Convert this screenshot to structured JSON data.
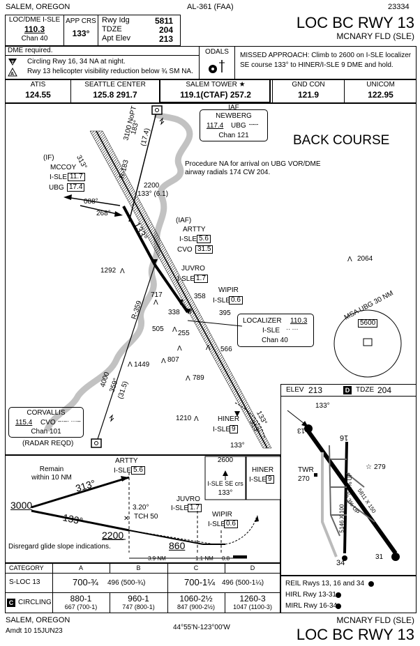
{
  "header": {
    "city_state": "SALEM, OREGON",
    "agency": "AL-361 (FAA)",
    "proc_number": "23334",
    "title": "LOC BC RWY 13",
    "airport": "MCNARY FLD (SLE)"
  },
  "briefing": {
    "loc_label": "LOC/DME  I-SLE",
    "loc_freq": "110.3",
    "chan": "Chan 40",
    "app_crs_label": "APP CRS",
    "app_crs": "133°",
    "rwy_ldg_label": "Rwy Idg",
    "rwy_ldg": "5811",
    "tdze_label": "TDZE",
    "tdze": "204",
    "apt_elev_label": "Apt Elev",
    "apt_elev": "213",
    "dme_required": "DME required.",
    "note1": "Circling Rwy 16, 34 NA at night.",
    "note2": "Rwy 13 helicopter visibility reduction below ¾ SM NA.",
    "odals": "ODALS",
    "missed": "MISSED APPROACH:  Climb to 2600 on I-SLE localizer SE course 133° to HINER/I-SLE 9 DME and hold."
  },
  "comms": [
    {
      "label": "ATIS",
      "value": "124.55"
    },
    {
      "label": "SEATTLE CENTER",
      "value": "125.8  291.7"
    },
    {
      "label": "SALEM TOWER ★",
      "value": "119.1(CTAF)  257.2"
    },
    {
      "label": "GND CON",
      "value": "121.9"
    },
    {
      "label": "UNICOM",
      "value": "122.95"
    }
  ],
  "plan": {
    "back_course": "BACK COURSE",
    "proc_na": "Procedure NA for arrival on UBG VOR/DME airway radials 174 CW 204.",
    "iaf_newberg": {
      "tag": "IAF",
      "name": "NEWBERG",
      "freq": "117.4",
      "id": "UBG",
      "chan": "Chan 121"
    },
    "mccoy": {
      "tag": "(IF)",
      "name": "MCCOY",
      "isle_label": "I-SLE",
      "isle_dme": "11.7",
      "ubg_label": "UBG",
      "ubg_dme": "17.4"
    },
    "artty": {
      "tag": "(IAF)",
      "name": "ARTTY",
      "isle_label": "I-SLE",
      "isle_dme": "5.6",
      "cvo_label": "CVO",
      "cvo_dme": "31.5"
    },
    "juvro": {
      "name": "JUVRO",
      "isle_label": "I-SLE",
      "isle_dme": "1.7"
    },
    "wipir": {
      "name": "WIPIR",
      "isle_label": "I-SLE",
      "isle_dme": "0.6"
    },
    "localizer": {
      "name": "LOCALIZER",
      "freq": "110.3",
      "id": "I-SLE",
      "chan": "Chan 40"
    },
    "corvallis": {
      "name": "CORVALLIS",
      "freq": "115.4",
      "id": "CVO",
      "chan": "Chan 101",
      "note": "(RADAR REQD)"
    },
    "hiner": {
      "name": "HINER",
      "isle_label": "I-SLE",
      "isle_dme": "9"
    },
    "msa": {
      "label": "MSA UBG 30 NM",
      "alt": "5600"
    },
    "labels": {
      "r183": "R-183",
      "feeder": "3100 NoPT",
      "feeder_crs": "183°",
      "feeder_dist": "(17.4)",
      "course_313": "313°",
      "alt_2200": "2200",
      "seg_2200": "133° (6.1)",
      "crs_088": "088°",
      "crs_268": "268°",
      "crs_133": "133°",
      "r359": "R-359",
      "r359_alt": "4000",
      "r359_crs": "359°",
      "r359_dist": "(31.5)",
      "miss_313": "313°",
      "miss_133": "133°"
    },
    "spots": [
      {
        "v": "1292"
      },
      {
        "v": "2064"
      },
      {
        "v": "717"
      },
      {
        "v": "358"
      },
      {
        "v": "338"
      },
      {
        "v": "395"
      },
      {
        "v": "505"
      },
      {
        "v": "255"
      },
      {
        "v": "566"
      },
      {
        "v": "1449"
      },
      {
        "v": "807"
      },
      {
        "v": "789"
      },
      {
        "v": "1210"
      }
    ]
  },
  "airport_sketch": {
    "elev_label": "ELEV",
    "elev": "213",
    "tdze_label": "TDZE",
    "tdze": "204",
    "box_letter": "D",
    "crs": "133°",
    "rwy_13": "13",
    "rwy_16": "16",
    "rwy_34": "34",
    "rwy_31": "31",
    "twr": "TWR",
    "twr_elev": "270",
    "obst": "279",
    "dim1": "5811 X 150",
    "dim2": "5146 X 100",
    "grad1": "0.3% UP",
    "grad2": "0.3% UP"
  },
  "profile": {
    "artty_name": "ARTTY",
    "artty_label": "I-SLE",
    "artty_dme": "5.6",
    "remain": "Remain\nwithin 10 NM",
    "out_crs": "313°",
    "in_crs": "133°",
    "alt_3000": "3000",
    "alt_2200": "2200",
    "gs_angle": "3.20°",
    "tch": "TCH 50",
    "juvro_name": "JUVRO",
    "juvro_label": "I-SLE",
    "juvro_dme": "1.7",
    "wipir_name": "WIPIR",
    "wipir_label": "I-SLE",
    "wipir_dme": "0.6",
    "mda": "860",
    "disregard": "Disregard glide slope indications.",
    "dist1": "3.9 NM",
    "dist2": "1.1 NM",
    "dist3": "0.8",
    "miss_alt": "2600",
    "miss_text": "I-SLE SE crs",
    "miss_crs": "133°",
    "hiner_name": "HINER",
    "hiner_label": "I-SLE",
    "hiner_dme": "9"
  },
  "minimums": {
    "header": [
      "CATEGORY",
      "A",
      "B",
      "C",
      "D"
    ],
    "sloc_label": "S-LOC 13",
    "sloc_ab": "700-¾",
    "sloc_ab_paren": "496 (500-¾)",
    "sloc_cd": "700-1¼",
    "sloc_cd_paren": "496 (500-1¼)",
    "circ_letter": "C",
    "circ_label": "CIRCLING",
    "circ": [
      {
        "main": "880-1",
        "sub": "667 (700-1)"
      },
      {
        "main": "960-1",
        "sub": "747 (800-1)"
      },
      {
        "main": "1060-2½",
        "sub": "847 (900-2½)"
      },
      {
        "main": "1260-3",
        "sub": "1047 (1100-3)"
      }
    ],
    "notes": [
      "REIL Rwys 13, 16 and 34",
      "HIRL Rwy 13-31",
      "MIRL Rwy 16-34"
    ]
  },
  "footer": {
    "city_state": "SALEM, OREGON",
    "amdt": "Amdt 10  15JUN23",
    "coords": "44°55'N-123°00'W",
    "airport": "MCNARY FLD (SLE)",
    "title": "LOC BC RWY 13"
  }
}
